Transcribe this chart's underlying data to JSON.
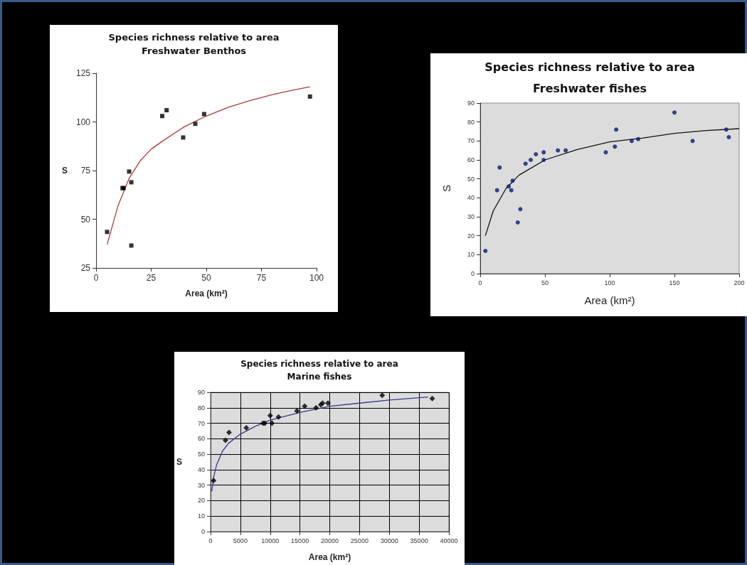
{
  "chart_data": [
    {
      "type": "scatter",
      "title": "Species richness relative to area",
      "subtitle": "Freshwater Benthos",
      "xlabel": "Area (km²)",
      "ylabel": "S",
      "xlim": [
        0,
        100
      ],
      "xticks": [
        0,
        25,
        50,
        75,
        100
      ],
      "ylim": [
        25,
        125
      ],
      "yticks": [
        25,
        50,
        75,
        100,
        125
      ],
      "grid": false,
      "series": [
        {
          "marker": "square",
          "color": "#000000",
          "x": [
            5,
            12,
            12.5,
            15,
            16,
            16,
            30,
            32,
            39.5,
            45,
            49,
            97
          ],
          "values": [
            43.5,
            66,
            66,
            74.5,
            69,
            36.5,
            103,
            106,
            92,
            99,
            104,
            113
          ]
        },
        {
          "type": "line",
          "color": "#b03a3a",
          "line_style": "solid",
          "x": [
            5,
            10,
            15,
            20,
            25,
            30,
            40,
            50,
            60,
            70,
            80,
            90,
            97
          ],
          "values": [
            37,
            57,
            71,
            80,
            86,
            90,
            97.5,
            103,
            107.5,
            111,
            114,
            116.5,
            118
          ]
        }
      ]
    },
    {
      "type": "scatter",
      "title": "Species richness relative to area",
      "subtitle": "Freshwater fishes",
      "xlabel": "Area (km²)",
      "ylabel": "S",
      "xlim": [
        0,
        200
      ],
      "xticks": [
        0,
        50,
        100,
        150,
        200
      ],
      "ylim": [
        0,
        90
      ],
      "yticks": [
        0,
        10,
        20,
        30,
        40,
        50,
        60,
        70,
        80,
        90
      ],
      "grid": false,
      "series": [
        {
          "marker": "circle",
          "color": "#0a1a6e",
          "x": [
            4,
            13,
            15,
            22,
            24,
            25,
            29,
            31,
            35,
            39,
            43,
            49,
            49,
            60,
            66,
            97,
            104,
            105,
            117,
            122,
            150,
            164,
            190,
            192
          ],
          "values": [
            12,
            44,
            56,
            46,
            44,
            49,
            27,
            34,
            58,
            60,
            63,
            64,
            60,
            65,
            65,
            64,
            67,
            76,
            70,
            71,
            85,
            70,
            76,
            72
          ]
        },
        {
          "type": "line",
          "color": "#111111",
          "line_style": "solid",
          "x": [
            4,
            10,
            20,
            30,
            50,
            75,
            100,
            125,
            150,
            175,
            200
          ],
          "values": [
            20,
            33,
            45,
            52,
            60,
            65.5,
            69.5,
            71.5,
            74,
            75.5,
            76.5
          ]
        }
      ]
    },
    {
      "type": "scatter",
      "title": "Species richness relative to area",
      "subtitle": "Marine fishes",
      "xlabel": "Area (km²)",
      "ylabel": "S",
      "xlim": [
        0,
        40000
      ],
      "xticks": [
        0,
        5000,
        10000,
        15000,
        20000,
        25000,
        30000,
        35000,
        40000
      ],
      "ylim": [
        0,
        90
      ],
      "yticks": [
        0,
        10,
        20,
        30,
        40,
        50,
        60,
        70,
        80,
        90
      ],
      "grid": true,
      "series": [
        {
          "marker": "diamond",
          "color": "#000000",
          "x": [
            500,
            2500,
            3100,
            6000,
            8800,
            9100,
            10000,
            10300,
            11400,
            14500,
            15800,
            17700,
            18500,
            18800,
            19700,
            28800,
            37200
          ],
          "values": [
            33,
            59,
            64,
            67,
            70,
            70,
            75,
            70,
            74,
            78,
            81,
            80,
            82,
            83,
            83,
            88,
            86
          ]
        },
        {
          "type": "line",
          "color": "#3a3a8a",
          "line_style": "solid",
          "x": [
            200,
            500,
            1000,
            2000,
            3000,
            5000,
            7500,
            10000,
            15000,
            20000,
            25000,
            30000,
            36500
          ],
          "values": [
            26,
            35,
            43,
            52,
            57,
            63,
            68,
            72,
            77,
            81,
            83,
            85,
            87
          ]
        }
      ]
    }
  ]
}
